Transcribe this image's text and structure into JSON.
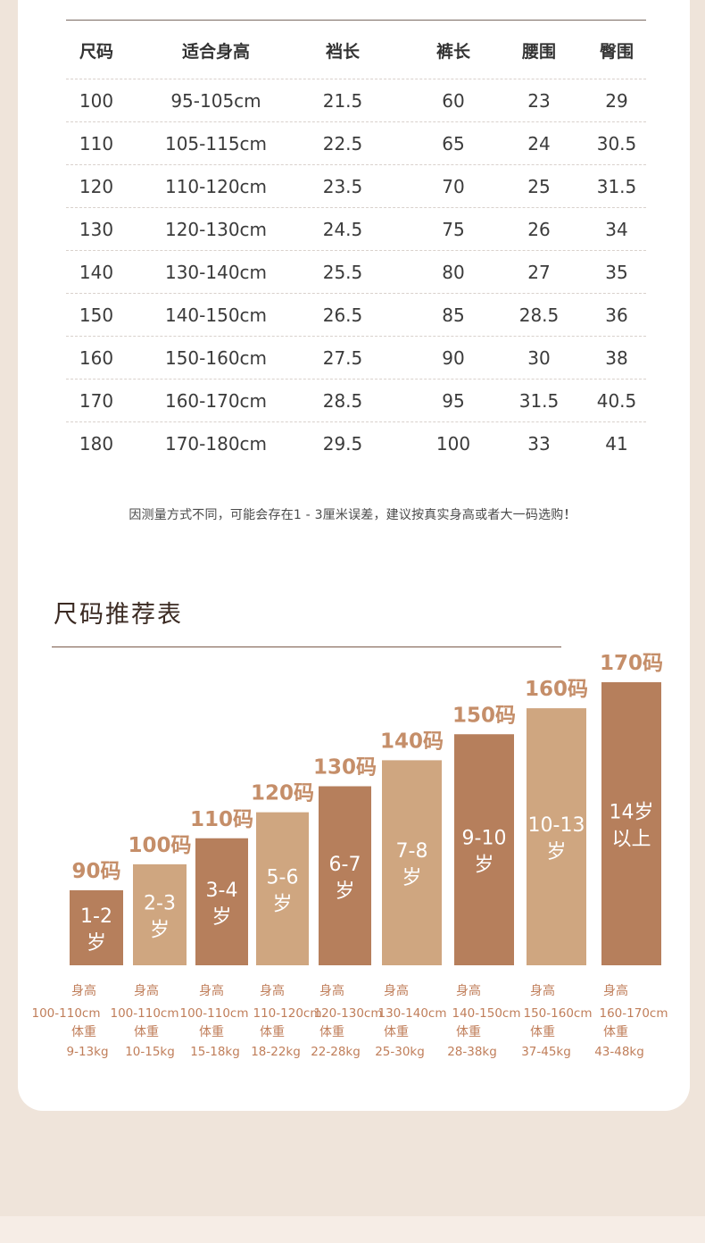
{
  "size_table": {
    "headers": [
      "尺码",
      "适合身高",
      "裆长",
      "裤长",
      "腰围",
      "臀围"
    ],
    "rows": [
      [
        "100",
        "95-105cm",
        "21.5",
        "60",
        "23",
        "29"
      ],
      [
        "110",
        "105-115cm",
        "22.5",
        "65",
        "24",
        "30.5"
      ],
      [
        "120",
        "110-120cm",
        "23.5",
        "70",
        "25",
        "31.5"
      ],
      [
        "130",
        "120-130cm",
        "24.5",
        "75",
        "26",
        "34"
      ],
      [
        "140",
        "130-140cm",
        "25.5",
        "80",
        "27",
        "35"
      ],
      [
        "150",
        "140-150cm",
        "26.5",
        "85",
        "28.5",
        "36"
      ],
      [
        "160",
        "150-160cm",
        "27.5",
        "90",
        "30",
        "38"
      ],
      [
        "170",
        "160-170cm",
        "28.5",
        "95",
        "31.5",
        "40.5"
      ],
      [
        "180",
        "170-180cm",
        "29.5",
        "100",
        "33",
        "41"
      ]
    ]
  },
  "note": {
    "text": "因测量方式不同，可能会存在1 - 3厘米误差，建议按真实身高或者大一码选购",
    "exclaim": "！"
  },
  "recommend_title": "尺码推荐表",
  "colors": {
    "dark_brown": "#b67f5c",
    "light_tan": "#cfa680",
    "label_orange": "#c58e69",
    "info_orange": "#c07e5a"
  },
  "chart_data": {
    "type": "bar",
    "title": "尺码推荐表",
    "categories": [
      "90码",
      "100码",
      "110码",
      "120码",
      "130码",
      "140码",
      "150码",
      "160码",
      "170码"
    ],
    "values": [
      90,
      100,
      110,
      120,
      130,
      140,
      150,
      160,
      170
    ],
    "bar_labels": [
      [
        "1-2",
        "岁"
      ],
      [
        "2-3",
        "岁"
      ],
      [
        "3-4",
        "岁"
      ],
      [
        "5-6",
        "岁"
      ],
      [
        "6-7",
        "岁"
      ],
      [
        "7-8",
        "岁"
      ],
      [
        "9-10",
        "岁"
      ],
      [
        "10-13",
        "岁"
      ],
      [
        "14岁",
        "以上"
      ]
    ],
    "bar_colors": [
      "dark",
      "light",
      "dark",
      "light",
      "dark",
      "light",
      "dark",
      "light",
      "dark"
    ],
    "height_label": "身高",
    "weight_label": "体重",
    "heights": [
      "100-110cm",
      "100-110cm",
      "100-110cm",
      "110-120cm",
      "120-130cm",
      "130-140cm",
      "140-150cm",
      "150-160cm",
      "160-170cm"
    ],
    "weights": [
      "9-13kg",
      "10-15kg",
      "15-18kg",
      "18-22kg",
      "22-28kg",
      "25-30kg",
      "28-38kg",
      "37-45kg",
      "43-48kg"
    ],
    "ylim": [
      0,
      170
    ]
  }
}
